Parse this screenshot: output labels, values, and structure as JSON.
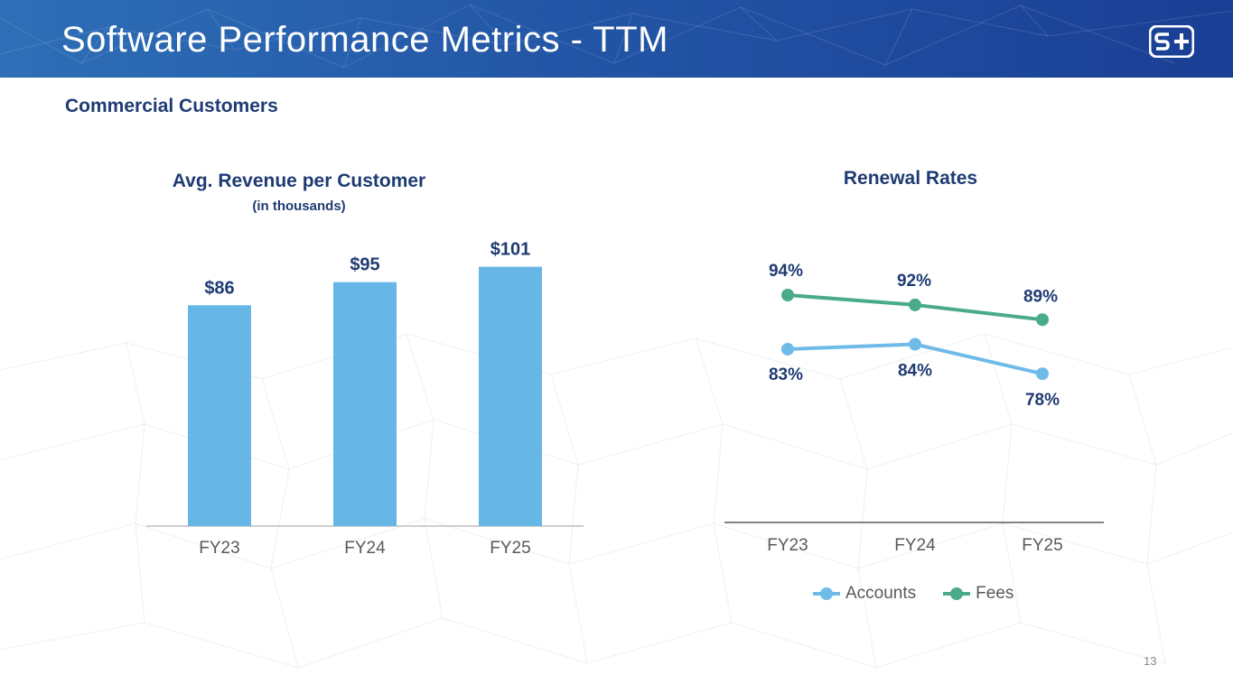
{
  "header": {
    "title": "Software Performance Metrics - TTM",
    "logo_icon": "s-plus-logo-icon"
  },
  "section": {
    "subtitle": "Commercial Customers"
  },
  "page_number": "13",
  "colors": {
    "bar": "#66b6e6",
    "accounts": "#6fbbe8",
    "fees": "#4aaa8c",
    "heading": "#1f3b73",
    "axis_text": "#595959"
  },
  "chart_data": [
    {
      "type": "bar",
      "title": "Avg. Revenue per Customer",
      "subtitle": "(in thousands)",
      "categories": [
        "FY23",
        "FY24",
        "FY25"
      ],
      "values": [
        86,
        95,
        101
      ],
      "data_labels": [
        "$86",
        "$95",
        "$101"
      ],
      "ylim": [
        0,
        110
      ],
      "grid": false
    },
    {
      "type": "line",
      "title": "Renewal Rates",
      "categories": [
        "FY23",
        "FY24",
        "FY25"
      ],
      "series": [
        {
          "name": "Accounts",
          "values": [
            83,
            84,
            78
          ],
          "labels": [
            "83%",
            "84%",
            "78%"
          ]
        },
        {
          "name": "Fees",
          "values": [
            94,
            92,
            89
          ],
          "labels": [
            "94%",
            "92%",
            "89%"
          ]
        }
      ],
      "ylim": [
        0,
        100
      ],
      "legend": "bottom",
      "grid": false
    }
  ]
}
